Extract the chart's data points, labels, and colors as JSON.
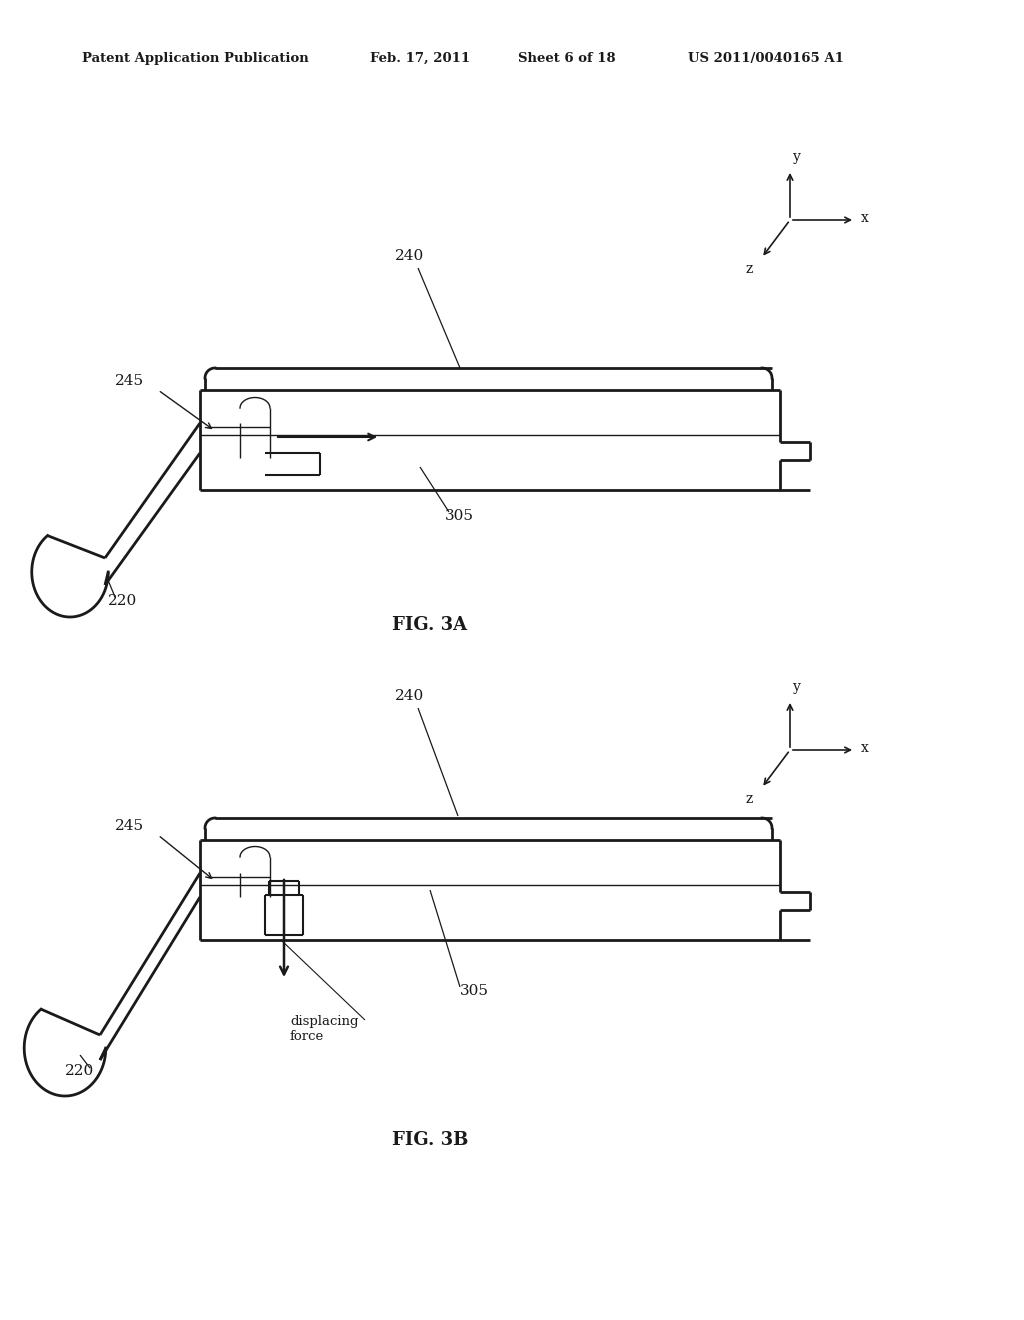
{
  "bg_color": "#ffffff",
  "line_color": "#1a1a1a",
  "header_left": "Patent Application Publication",
  "header_mid1": "Feb. 17, 2011",
  "header_mid2": "Sheet 6 of 18",
  "header_right": "US 2011/0040165 A1",
  "fig3a_label": "FIG. 3A",
  "fig3b_label": "FIG. 3B",
  "label_220": "220",
  "label_240": "240",
  "label_245": "245",
  "label_305": "305",
  "label_disp1": "displacing",
  "label_disp2": "force",
  "header_fontsize": 9.5,
  "label_fontsize": 11,
  "fig_label_fontsize": 13
}
